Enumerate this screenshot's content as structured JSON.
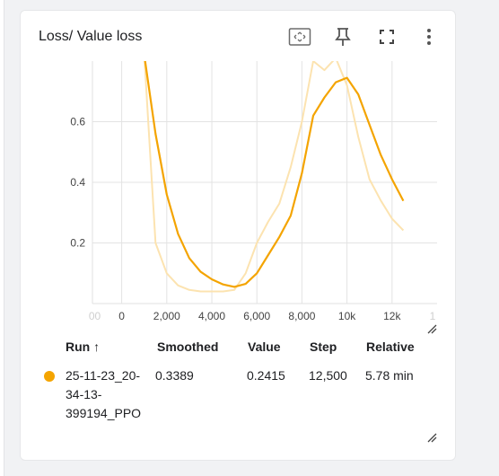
{
  "card": {
    "title": "Loss/ Value loss",
    "icons": [
      "fit-domain-icon",
      "pin-icon",
      "fullscreen-icon",
      "more-vert-icon"
    ]
  },
  "chart_data": {
    "type": "line",
    "title": "Loss/ Value loss",
    "xlabel": "",
    "ylabel": "",
    "xlim": [
      -1300,
      14000
    ],
    "ylim": [
      0,
      0.8
    ],
    "x_ticks": [
      "0",
      "2,000",
      "4,000",
      "6,000",
      "8,000",
      "10k",
      "12k"
    ],
    "x_tick_values": [
      0,
      2000,
      4000,
      6000,
      8000,
      10000,
      12000
    ],
    "x_edge_labels": [
      "00",
      "1"
    ],
    "y_ticks": [
      "0.2",
      "0.4",
      "0.6"
    ],
    "y_tick_values": [
      0.2,
      0.4,
      0.6
    ],
    "grid": true,
    "series": [
      {
        "role": "raw",
        "color": "#fce3b0",
        "points": [
          [
            1000,
            0.82
          ],
          [
            1500,
            0.2
          ],
          [
            2000,
            0.1
          ],
          [
            2500,
            0.06
          ],
          [
            3000,
            0.045
          ],
          [
            3500,
            0.04
          ],
          [
            4000,
            0.04
          ],
          [
            4500,
            0.04
          ],
          [
            5000,
            0.045
          ],
          [
            5500,
            0.1
          ],
          [
            6000,
            0.2
          ],
          [
            6500,
            0.27
          ],
          [
            7000,
            0.33
          ],
          [
            7500,
            0.45
          ],
          [
            8000,
            0.6
          ],
          [
            8500,
            0.8
          ],
          [
            9000,
            0.77
          ],
          [
            9500,
            0.81
          ],
          [
            10000,
            0.72
          ],
          [
            10500,
            0.55
          ],
          [
            11000,
            0.41
          ],
          [
            11500,
            0.34
          ],
          [
            12000,
            0.28
          ],
          [
            12500,
            0.2415
          ]
        ]
      },
      {
        "role": "smoothed",
        "color": "#f4a400",
        "points": [
          [
            1000,
            0.82
          ],
          [
            1500,
            0.56
          ],
          [
            2000,
            0.36
          ],
          [
            2500,
            0.23
          ],
          [
            3000,
            0.15
          ],
          [
            3500,
            0.105
          ],
          [
            4000,
            0.08
          ],
          [
            4500,
            0.063
          ],
          [
            5000,
            0.055
          ],
          [
            5500,
            0.065
          ],
          [
            6000,
            0.1
          ],
          [
            6500,
            0.16
          ],
          [
            7000,
            0.22
          ],
          [
            7500,
            0.29
          ],
          [
            8000,
            0.43
          ],
          [
            8500,
            0.62
          ],
          [
            9000,
            0.68
          ],
          [
            9500,
            0.73
          ],
          [
            10000,
            0.745
          ],
          [
            10500,
            0.69
          ],
          [
            11000,
            0.59
          ],
          [
            11500,
            0.49
          ],
          [
            12000,
            0.41
          ],
          [
            12500,
            0.3389
          ]
        ]
      }
    ]
  },
  "table": {
    "headers": {
      "run": "Run ↑",
      "smoothed": "Smoothed",
      "value": "Value",
      "step": "Step",
      "relative": "Relative"
    },
    "rows": [
      {
        "run_line1": "25-11-23_20-",
        "run_line2": "34-13-",
        "run_line3": "399194_PPO",
        "smoothed": "0.3389",
        "value": "0.2415",
        "step": "12,500",
        "relative": "5.78 min",
        "color": "#f4a400"
      }
    ]
  }
}
